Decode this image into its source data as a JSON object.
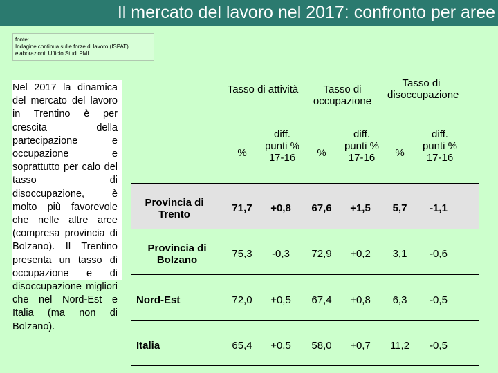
{
  "title": "Il mercato del lavoro nel 2017: confronto per aree",
  "source": {
    "line1": "fonte:",
    "line2": "Indagine continua sulle forze di lavoro (ISPAT)",
    "line3": "elaborazioni: Ufficio Studi PML"
  },
  "note": "Nel 2017 la dinamica del mercato del lavoro in Trentino è per crescita della partecipazione e occupazione e soprattutto per calo del tasso di disoccupazione, è molto più favorevole che nelle altre aree (compresa provincia di Bolzano). Il Trentino presenta un tasso di occupazione e di disoccupazione migliori che nel Nord-Est e Italia (ma non di Bolzano).",
  "table": {
    "groups": [
      "Tasso di attività",
      "Tasso di occupazione",
      "Tasso di disoccupazione"
    ],
    "pct_label": "%",
    "diff_label": "diff. punti % 17-16",
    "rows": [
      {
        "label": "Provincia di Trento",
        "values": [
          "71,7",
          "+0,8",
          "67,6",
          "+1,5",
          "5,7",
          "-1,1"
        ]
      },
      {
        "label": "Provincia di Bolzano",
        "values": [
          "75,3",
          "-0,3",
          "72,9",
          "+0,2",
          "3,1",
          "-0,6"
        ]
      },
      {
        "label": "Nord-Est",
        "values": [
          "72,0",
          "+0,5",
          "67,4",
          "+0,8",
          "6,3",
          "-0,5"
        ]
      },
      {
        "label": "Italia",
        "values": [
          "65,4",
          "+0,5",
          "58,0",
          "+0,7",
          "11,2",
          "-0,5"
        ]
      }
    ]
  }
}
